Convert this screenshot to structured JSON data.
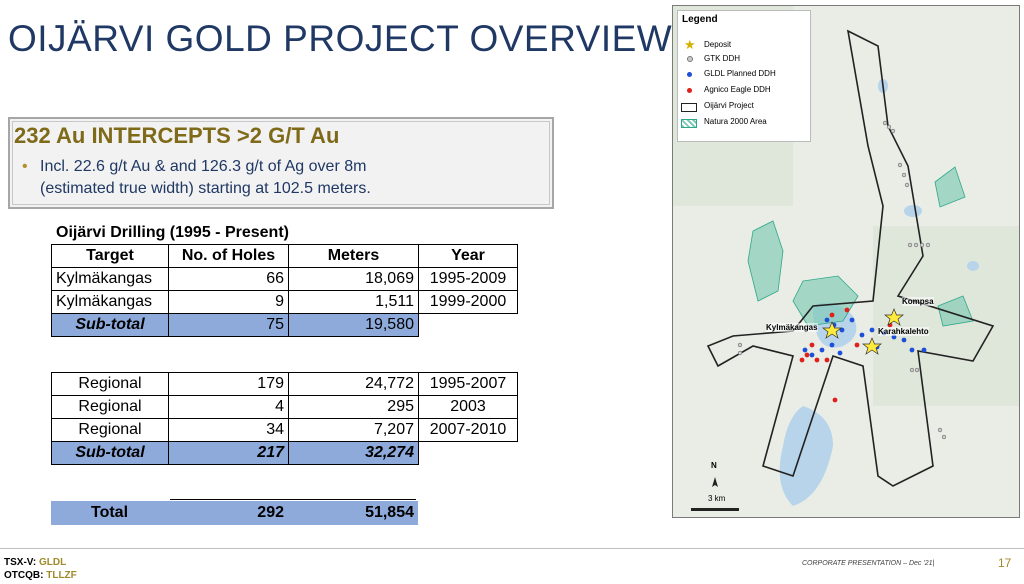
{
  "title": "OIJÄRVI GOLD PROJECT OVERVIEW",
  "callout": {
    "heading": "232 Au INTERCEPTS >2 G/T Au",
    "bullet_line1": "Incl. 22.6 g/t Au & and 126.3 g/t of Ag over 8m",
    "bullet_line2": "(estimated true width) starting at 102.5 meters."
  },
  "drilling": {
    "caption": "Oijärvi Drilling (1995 - Present)",
    "headers": [
      "Target",
      "No. of Holes",
      "Meters",
      "Year"
    ],
    "group1": [
      {
        "target": "Kylmäkangas",
        "holes": "66",
        "meters": "18,069",
        "year": "1995-2009"
      },
      {
        "target": "Kylmäkangas",
        "holes": "9",
        "meters": "1,511",
        "year": "1999-2000"
      }
    ],
    "group1_subtotal": {
      "label": "Sub-total",
      "holes": "75",
      "meters": "19,580"
    },
    "group2": [
      {
        "target": "Regional",
        "holes": "179",
        "meters": "24,772",
        "year": "1995-2007"
      },
      {
        "target": "Regional",
        "holes": "4",
        "meters": "295",
        "year": "2003"
      },
      {
        "target": "Regional",
        "holes": "34",
        "meters": "7,207",
        "year": "2007-2010"
      }
    ],
    "group2_subtotal": {
      "label": "Sub-total",
      "holes": "217",
      "meters": "32,274"
    },
    "total": {
      "label": "Total",
      "holes": "292",
      "meters": "51,854"
    }
  },
  "map": {
    "legend_title": "Legend",
    "legend_items": [
      "Deposit",
      "GTK DDH",
      "GLDL Planned DDH",
      "Agnico Eagle DDH",
      "Oijärvi Project",
      "Natura 2000 Area"
    ],
    "labels": {
      "kompsa": "Kompsa",
      "kylmakangas": "Kylmäkangas",
      "karahkalehto": "Karahkalehto"
    },
    "north": "N",
    "scale": "3 km",
    "colors": {
      "deposit": "#ffeb3b",
      "gtk": "#9e9e9e",
      "gldl": "#1e4fd8",
      "agnico": "#e0201b",
      "natura": "#2ea88a"
    }
  },
  "footer": {
    "tsx_label": "TSX-V:",
    "tsx_value": "GLDL",
    "otc_label": "OTCQB:",
    "otc_value": "TLLZF",
    "corp": "CORPORATE PRESENTATION – Dec '21|",
    "page": "17"
  }
}
